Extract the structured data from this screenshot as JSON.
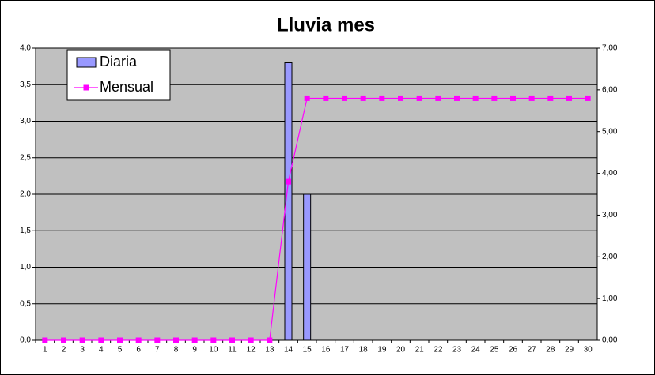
{
  "chart_data": {
    "type": "bar",
    "title": "Lluvia mes",
    "categories": [
      "1",
      "2",
      "3",
      "4",
      "5",
      "6",
      "7",
      "8",
      "9",
      "10",
      "11",
      "12",
      "13",
      "14",
      "15",
      "16",
      "17",
      "18",
      "19",
      "20",
      "21",
      "22",
      "23",
      "24",
      "25",
      "26",
      "27",
      "28",
      "29",
      "30"
    ],
    "series": [
      {
        "name": "Diaria",
        "type": "bar",
        "color": "#9999ff",
        "values": [
          0,
          0,
          0,
          0,
          0,
          0,
          0,
          0,
          0,
          0,
          0,
          0,
          0,
          3.8,
          2.0,
          0,
          0,
          0,
          0,
          0,
          0,
          0,
          0,
          0,
          0,
          0,
          0,
          0,
          0,
          0
        ]
      },
      {
        "name": "Mensual",
        "type": "line",
        "axis": "y2",
        "color": "#ff00ff",
        "values": [
          0,
          0,
          0,
          0,
          0,
          0,
          0,
          0,
          0,
          0,
          0,
          0,
          0,
          3.8,
          5.8,
          5.8,
          5.8,
          5.8,
          5.8,
          5.8,
          5.8,
          5.8,
          5.8,
          5.8,
          5.8,
          5.8,
          5.8,
          5.8,
          5.8,
          5.8
        ]
      }
    ],
    "ylim": [
      0,
      4
    ],
    "yticks": [
      {
        "value": 0,
        "label": "0,0"
      },
      {
        "value": 0.5,
        "label": "0,5"
      },
      {
        "value": 1,
        "label": "1,0"
      },
      {
        "value": 1.5,
        "label": "1,5"
      },
      {
        "value": 2,
        "label": "2,0"
      },
      {
        "value": 2.5,
        "label": "2,5"
      },
      {
        "value": 3,
        "label": "3,0"
      },
      {
        "value": 3.5,
        "label": "3,5"
      },
      {
        "value": 4,
        "label": "4,0"
      }
    ],
    "y2lim": [
      0,
      7
    ],
    "y2ticks": [
      {
        "value": 0,
        "label": "0,00"
      },
      {
        "value": 1,
        "label": "1,00"
      },
      {
        "value": 2,
        "label": "2,00"
      },
      {
        "value": 3,
        "label": "3,00"
      },
      {
        "value": 4,
        "label": "4,00"
      },
      {
        "value": 5,
        "label": "5,00"
      },
      {
        "value": 6,
        "label": "6,00"
      },
      {
        "value": 7,
        "label": "7,00"
      }
    ],
    "grid": true,
    "legend": "top-left",
    "background": "#c0c0c0"
  }
}
